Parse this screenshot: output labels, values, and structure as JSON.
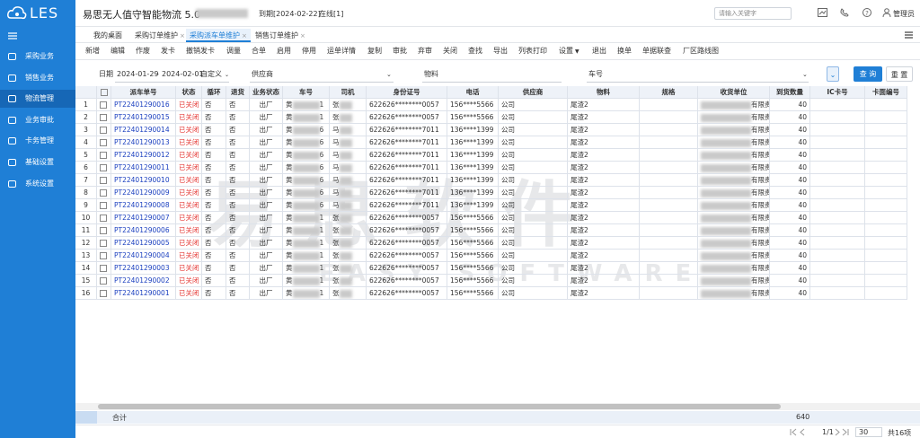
{
  "sidebar": {
    "logo": "LES",
    "items": [
      "采购业务",
      "销售业务",
      "物流管理",
      "业务审批",
      "卡务管理",
      "基础设置",
      "系统设置"
    ]
  },
  "header": {
    "title": "易思无人值守智能物流 5.0",
    "expiry": "到期[2024-02-22]",
    "online": "在线[1]",
    "search_placeholder": "请输入关键字",
    "user": "管理员"
  },
  "tabs": [
    "我的桌面",
    "采购订单维护",
    "采购派车单维护",
    "销售订单维护"
  ],
  "toolbar": [
    "新增",
    "编辑",
    "作废",
    "发卡",
    "撤销发卡",
    "调量",
    "合单",
    "启用",
    "停用",
    "运单详情",
    "复制",
    "审批",
    "弃审",
    "关闭",
    "查找",
    "导出",
    "列表打印",
    "设置",
    "退出",
    "换单",
    "单据联查",
    "厂区路线图"
  ],
  "filter": {
    "date_label": "日期",
    "date_from": "2024-01-29",
    "date_sep": "-",
    "date_to": "2024-02-01",
    "date_mode": "自定义",
    "supplier": "供应商",
    "material": "物料",
    "car": "车号",
    "query": "查 询",
    "reset": "重 置"
  },
  "table": {
    "columns": [
      "派车单号",
      "状态",
      "循环",
      "退货",
      "业务状态",
      "车号",
      "司机",
      "身份证号",
      "电话",
      "供应商",
      "物料",
      "规格",
      "收货单位",
      "到货数量",
      "IC卡号",
      "卡面编号"
    ],
    "rows": [
      [
        1,
        "PT22401290016",
        "已关闭",
        "否",
        "否",
        "出厂",
        "黄",
        "1",
        "张",
        "622626********0057",
        "156****5566",
        "公司",
        "尾渣2",
        "有限责",
        40
      ],
      [
        2,
        "PT22401290015",
        "已关闭",
        "否",
        "否",
        "出厂",
        "黄",
        "1",
        "张",
        "622626********0057",
        "156****5566",
        "公司",
        "尾渣2",
        "有限责",
        40
      ],
      [
        3,
        "PT22401290014",
        "已关闭",
        "否",
        "否",
        "出厂",
        "黄",
        "6",
        "马",
        "622626********7011",
        "136****1399",
        "公司",
        "尾渣2",
        "有限责",
        40
      ],
      [
        4,
        "PT22401290013",
        "已关闭",
        "否",
        "否",
        "出厂",
        "黄",
        "6",
        "马",
        "622626********7011",
        "136****1399",
        "公司",
        "尾渣2",
        "有限责",
        40
      ],
      [
        5,
        "PT22401290012",
        "已关闭",
        "否",
        "否",
        "出厂",
        "黄",
        "6",
        "马",
        "622626********7011",
        "136****1399",
        "公司",
        "尾渣2",
        "有限责",
        40
      ],
      [
        6,
        "PT22401290011",
        "已关闭",
        "否",
        "否",
        "出厂",
        "黄",
        "6",
        "马",
        "622626********7011",
        "136****1399",
        "公司",
        "尾渣2",
        "有限责",
        40
      ],
      [
        7,
        "PT22401290010",
        "已关闭",
        "否",
        "否",
        "出厂",
        "黄",
        "6",
        "马",
        "622626********7011",
        "136****1399",
        "公司",
        "尾渣2",
        "有限责",
        40
      ],
      [
        8,
        "PT22401290009",
        "已关闭",
        "否",
        "否",
        "出厂",
        "黄",
        "6",
        "马",
        "622626********7011",
        "136****1399",
        "公司",
        "尾渣2",
        "有限责",
        40
      ],
      [
        9,
        "PT22401290008",
        "已关闭",
        "否",
        "否",
        "出厂",
        "黄",
        "6",
        "马",
        "622626********7011",
        "136****1399",
        "公司",
        "尾渣2",
        "有限责",
        40
      ],
      [
        10,
        "PT22401290007",
        "已关闭",
        "否",
        "否",
        "出厂",
        "黄",
        "1",
        "张",
        "622626********0057",
        "156****5566",
        "公司",
        "尾渣2",
        "有限责",
        40
      ],
      [
        11,
        "PT22401290006",
        "已关闭",
        "否",
        "否",
        "出厂",
        "黄",
        "1",
        "张",
        "622626********0057",
        "156****5566",
        "公司",
        "尾渣2",
        "有限责",
        40
      ],
      [
        12,
        "PT22401290005",
        "已关闭",
        "否",
        "否",
        "出厂",
        "黄",
        "1",
        "张",
        "622626********0057",
        "156****5566",
        "公司",
        "尾渣2",
        "有限责",
        40
      ],
      [
        13,
        "PT22401290004",
        "已关闭",
        "否",
        "否",
        "出厂",
        "黄",
        "1",
        "张",
        "622626********0057",
        "156****5566",
        "公司",
        "尾渣2",
        "有限责",
        40
      ],
      [
        14,
        "PT22401290003",
        "已关闭",
        "否",
        "否",
        "出厂",
        "黄",
        "1",
        "张",
        "622626********0057",
        "156****5566",
        "公司",
        "尾渣2",
        "有限责",
        40
      ],
      [
        15,
        "PT22401290002",
        "已关闭",
        "否",
        "否",
        "出厂",
        "黄",
        "1",
        "张",
        "622626********0057",
        "156****5566",
        "公司",
        "尾渣2",
        "有限责",
        40
      ],
      [
        16,
        "PT22401290001",
        "已关闭",
        "否",
        "否",
        "出厂",
        "黄",
        "1",
        "张",
        "622626********0057",
        "156****5566",
        "公司",
        "尾渣2",
        "有限责",
        40
      ]
    ]
  },
  "footer": {
    "total_label": "合计",
    "total_qty": 640
  },
  "pagination": {
    "page": "1/1",
    "page_size": "30",
    "count": "共16项"
  },
  "watermark": {
    "cn": "易思软件",
    "en": "EASY SOFTWARE"
  }
}
